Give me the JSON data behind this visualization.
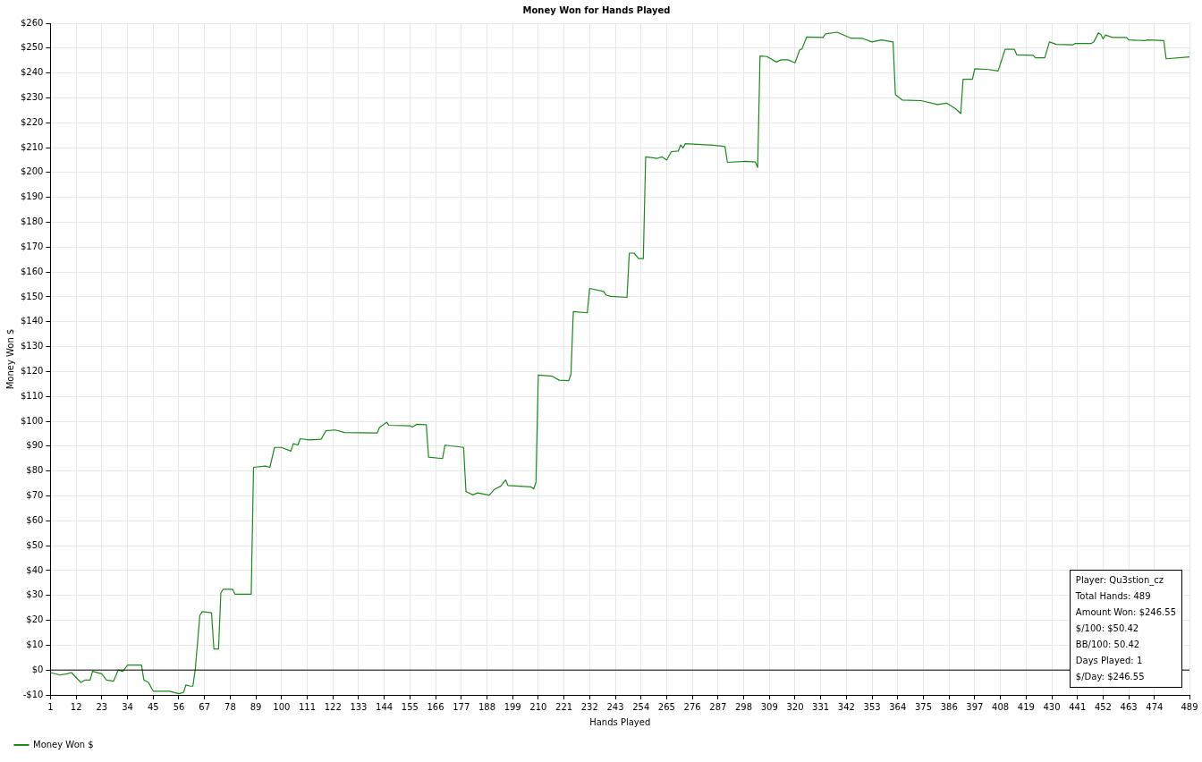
{
  "chart_data": {
    "type": "line",
    "title": "Money Won for Hands Played",
    "xlabel": "Hands Played",
    "ylabel": "Money Won $",
    "series": [
      {
        "name": "Money Won $",
        "color": "#1a8a1a",
        "x": [
          1,
          5,
          8,
          10,
          12,
          14,
          16,
          18,
          19,
          23,
          25,
          28,
          30,
          32,
          34,
          40,
          41,
          43,
          45,
          52,
          56,
          58,
          59,
          61,
          62,
          63,
          65,
          66,
          70,
          71,
          73,
          74,
          75,
          79,
          80,
          87,
          88,
          93,
          95,
          97,
          100,
          104,
          105,
          107,
          108,
          112,
          117,
          119,
          123,
          127,
          141,
          142,
          145,
          146,
          155,
          156,
          158,
          162,
          163,
          169,
          170,
          178,
          179,
          182,
          184,
          189,
          191,
          194,
          196,
          197,
          207,
          208,
          209,
          210,
          216,
          219,
          223,
          224,
          225,
          231,
          232,
          238,
          239,
          241,
          248,
          249,
          251,
          253,
          255,
          256,
          261,
          263,
          265,
          267,
          270,
          271,
          272,
          273,
          285,
          290,
          291,
          299,
          303,
          304,
          305,
          308,
          312,
          314,
          317,
          320,
          322,
          323,
          325,
          332,
          333,
          338,
          344,
          349,
          353,
          357,
          362,
          363,
          366,
          374,
          381,
          385,
          389,
          391,
          392,
          396,
          397,
          403,
          407,
          410,
          414,
          415,
          422,
          423,
          427,
          429,
          432,
          439,
          440,
          447,
          448,
          450,
          451,
          452,
          453,
          456,
          462,
          463,
          470,
          471,
          478,
          479,
          489
        ],
        "values": [
          -1,
          -2,
          -1.5,
          -1,
          -3,
          -5,
          -4,
          -4,
          -0.5,
          -1.5,
          -4,
          -4.5,
          0,
          -0.5,
          2,
          2,
          -4,
          -5,
          -8.5,
          -8.5,
          -9.5,
          -9,
          -6,
          -6.5,
          -6.5,
          0,
          22,
          23.5,
          23,
          8.5,
          8.5,
          31,
          32.5,
          32.5,
          30.5,
          30.5,
          81.5,
          82,
          81.5,
          89.5,
          89.5,
          88,
          91,
          90.5,
          93,
          92.5,
          92.8,
          96.2,
          96.5,
          95.5,
          95.3,
          97.6,
          99.6,
          98.4,
          98.2,
          97.7,
          98.8,
          98.6,
          85.6,
          85,
          90.4,
          89.5,
          71.8,
          70.4,
          71.2,
          70.3,
          72.5,
          74,
          76.4,
          74.2,
          73.6,
          72.8,
          75.5,
          118.6,
          118.1,
          116.5,
          116.3,
          118.9,
          144.1,
          143.6,
          153.4,
          152.2,
          150.8,
          150.2,
          149.8,
          167.6,
          167.6,
          165.4,
          165.4,
          206.3,
          205.7,
          206.3,
          205,
          208.4,
          208.6,
          211.1,
          209.9,
          211.6,
          211,
          210.4,
          204.1,
          204.5,
          204.2,
          202,
          246.8,
          246.6,
          244.4,
          245.3,
          245.3,
          244.1,
          249.3,
          249.7,
          254.5,
          254.3,
          255.7,
          256.4,
          254,
          253.9,
          252.5,
          253.3,
          252.5,
          231.3,
          229.1,
          228.9,
          227.3,
          227.9,
          225.5,
          223.7,
          237.5,
          237.5,
          241.7,
          241.4,
          240.8,
          249.5,
          249.5,
          247.3,
          247.1,
          246.1,
          246.1,
          252.5,
          251.5,
          251.3,
          251.9,
          251.9,
          252.5,
          256.1,
          255.5,
          253.7,
          255.3,
          254.3,
          254.3,
          253.3,
          253,
          253.3,
          253,
          245.7,
          246.5
        ]
      }
    ],
    "xlim": [
      1,
      489
    ],
    "xticks": [
      1,
      12,
      23,
      34,
      45,
      56,
      67,
      78,
      89,
      100,
      111,
      122,
      133,
      144,
      155,
      166,
      177,
      188,
      199,
      210,
      221,
      232,
      243,
      254,
      265,
      276,
      287,
      298,
      309,
      320,
      331,
      342,
      353,
      364,
      375,
      386,
      397,
      408,
      419,
      430,
      441,
      452,
      463,
      474,
      489
    ],
    "ylim": [
      -10,
      260
    ],
    "yticks": [
      {
        "value": -10,
        "label": "-$10"
      },
      {
        "value": 0,
        "label": "$0"
      },
      {
        "value": 10,
        "label": "$10"
      },
      {
        "value": 20,
        "label": "$20"
      },
      {
        "value": 30,
        "label": "$30"
      },
      {
        "value": 40,
        "label": "$40"
      },
      {
        "value": 50,
        "label": "$50"
      },
      {
        "value": 60,
        "label": "$60"
      },
      {
        "value": 70,
        "label": "$70"
      },
      {
        "value": 80,
        "label": "$80"
      },
      {
        "value": 90,
        "label": "$90"
      },
      {
        "value": 100,
        "label": "$100"
      },
      {
        "value": 110,
        "label": "$110"
      },
      {
        "value": 120,
        "label": "$120"
      },
      {
        "value": 130,
        "label": "$130"
      },
      {
        "value": 140,
        "label": "$140"
      },
      {
        "value": 150,
        "label": "$150"
      },
      {
        "value": 160,
        "label": "$160"
      },
      {
        "value": 170,
        "label": "$170"
      },
      {
        "value": 180,
        "label": "$180"
      },
      {
        "value": 190,
        "label": "$190"
      },
      {
        "value": 200,
        "label": "$200"
      },
      {
        "value": 210,
        "label": "$210"
      },
      {
        "value": 220,
        "label": "$220"
      },
      {
        "value": 230,
        "label": "$230"
      },
      {
        "value": 240,
        "label": "$240"
      },
      {
        "value": 250,
        "label": "$250"
      },
      {
        "value": 260,
        "label": "$260"
      }
    ],
    "ref_lines": [
      {
        "axis": "y",
        "value": 0,
        "color": "#000000"
      }
    ],
    "annotations": [
      "Player: Qu3stion_cz",
      "Total Hands: 489",
      "Amount Won: $246.55",
      "$/100: $50.42",
      "BB/100: 50.42",
      "Days Played: 1",
      "$/Day: $246.55"
    ],
    "grid": true,
    "legend": "bottom left",
    "marker": "none",
    "line_style": "solid"
  }
}
